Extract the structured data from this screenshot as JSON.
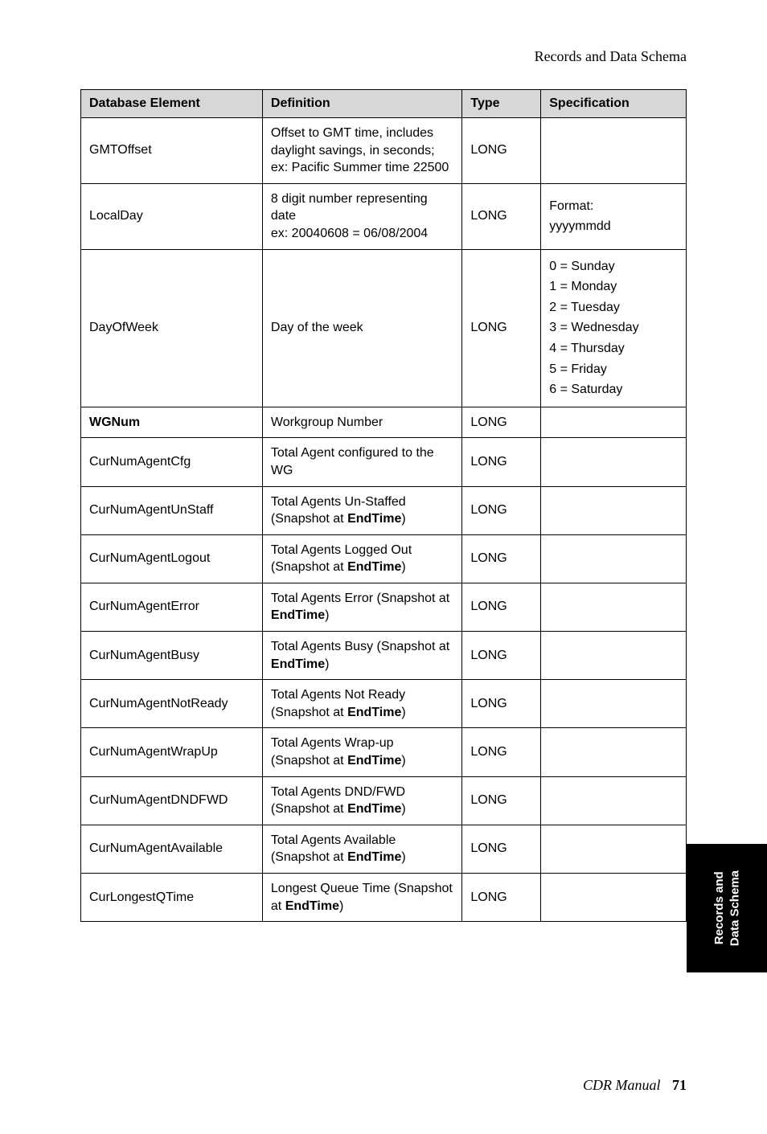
{
  "header": {
    "title": "Records and Data Schema"
  },
  "table": {
    "columns": [
      "Database Element",
      "Definition",
      "Type",
      "Specification"
    ],
    "column_widths_pct": [
      30,
      33,
      13,
      24
    ],
    "header_bg": "#d7d7d7",
    "border_color": "#000000",
    "font_size": 16,
    "rows": [
      {
        "element": "GMTOffset",
        "element_bold": false,
        "definition": "Offset to GMT time, includes daylight savings, in seconds; ex: Pacific Summer time 22500",
        "type": "LONG",
        "specification": ""
      },
      {
        "element": "LocalDay",
        "element_bold": false,
        "definition": "8 digit number representing date\nex: 20040608 = 06/08/2004",
        "type": "LONG",
        "specification": "Format:\nyyyymmdd"
      },
      {
        "element": "DayOfWeek",
        "element_bold": false,
        "definition": "Day of the week",
        "type": "LONG",
        "specification": "0 = Sunday\n1 = Monday\n2 = Tuesday\n3 = Wednesday\n4 = Thursday\n5 = Friday\n6 = Saturday"
      },
      {
        "element": "WGNum",
        "element_bold": true,
        "definition": "Workgroup Number",
        "type": "LONG",
        "specification": ""
      },
      {
        "element": "CurNumAgentCfg",
        "element_bold": false,
        "definition_parts": [
          {
            "text": "Total Agent configured to the WG",
            "bold": false
          }
        ],
        "definition": "Total Agent configured to the WG",
        "type": "LONG",
        "specification": ""
      },
      {
        "element": "CurNumAgentUnStaff",
        "element_bold": false,
        "definition_parts": [
          {
            "text": "Total Agents Un-Staffed (Snapshot at ",
            "bold": false
          },
          {
            "text": "EndTime",
            "bold": true
          },
          {
            "text": ")",
            "bold": false
          }
        ],
        "type": "LONG",
        "specification": ""
      },
      {
        "element": "CurNumAgentLogout",
        "element_bold": false,
        "definition_parts": [
          {
            "text": "Total Agents Logged Out (Snapshot at ",
            "bold": false
          },
          {
            "text": "EndTime",
            "bold": true
          },
          {
            "text": ")",
            "bold": false
          }
        ],
        "type": "LONG",
        "specification": ""
      },
      {
        "element": "CurNumAgentError",
        "element_bold": false,
        "definition_parts": [
          {
            "text": "Total Agents Error (Snapshot at ",
            "bold": false
          },
          {
            "text": "EndTime",
            "bold": true
          },
          {
            "text": ")",
            "bold": false
          }
        ],
        "type": "LONG",
        "specification": ""
      },
      {
        "element": "CurNumAgentBusy",
        "element_bold": false,
        "definition_parts": [
          {
            "text": "Total Agents Busy (Snapshot at ",
            "bold": false
          },
          {
            "text": "EndTime",
            "bold": true
          },
          {
            "text": ")",
            "bold": false
          }
        ],
        "type": "LONG",
        "specification": ""
      },
      {
        "element": "CurNumAgentNotReady",
        "element_bold": false,
        "definition_parts": [
          {
            "text": "Total Agents Not Ready (Snapshot at ",
            "bold": false
          },
          {
            "text": "EndTime",
            "bold": true
          },
          {
            "text": ")",
            "bold": false
          }
        ],
        "type": "LONG",
        "specification": ""
      },
      {
        "element": "CurNumAgentWrapUp",
        "element_bold": false,
        "definition_parts": [
          {
            "text": "Total Agents Wrap-up (Snapshot at ",
            "bold": false
          },
          {
            "text": "EndTime",
            "bold": true
          },
          {
            "text": ")",
            "bold": false
          }
        ],
        "type": "LONG",
        "specification": ""
      },
      {
        "element": "CurNumAgentDNDFWD",
        "element_bold": false,
        "definition_parts": [
          {
            "text": "Total Agents DND/FWD (Snapshot at ",
            "bold": false
          },
          {
            "text": "EndTime",
            "bold": true
          },
          {
            "text": ")",
            "bold": false
          }
        ],
        "type": "LONG",
        "specification": ""
      },
      {
        "element": "CurNumAgentAvailable",
        "element_bold": false,
        "definition_parts": [
          {
            "text": "Total Agents Available (Snapshot at ",
            "bold": false
          },
          {
            "text": "EndTime",
            "bold": true
          },
          {
            "text": ")",
            "bold": false
          }
        ],
        "type": "LONG",
        "specification": ""
      },
      {
        "element": "CurLongestQTime",
        "element_bold": false,
        "definition_parts": [
          {
            "text": "Longest Queue Time (Snapshot at ",
            "bold": false
          },
          {
            "text": "EndTime",
            "bold": true
          },
          {
            "text": ")",
            "bold": false
          }
        ],
        "type": "LONG",
        "specification": ""
      }
    ]
  },
  "side_tab": {
    "line1": "Records and",
    "line2": "Data Schema"
  },
  "footer": {
    "text": "CDR Manual",
    "page": "71"
  }
}
